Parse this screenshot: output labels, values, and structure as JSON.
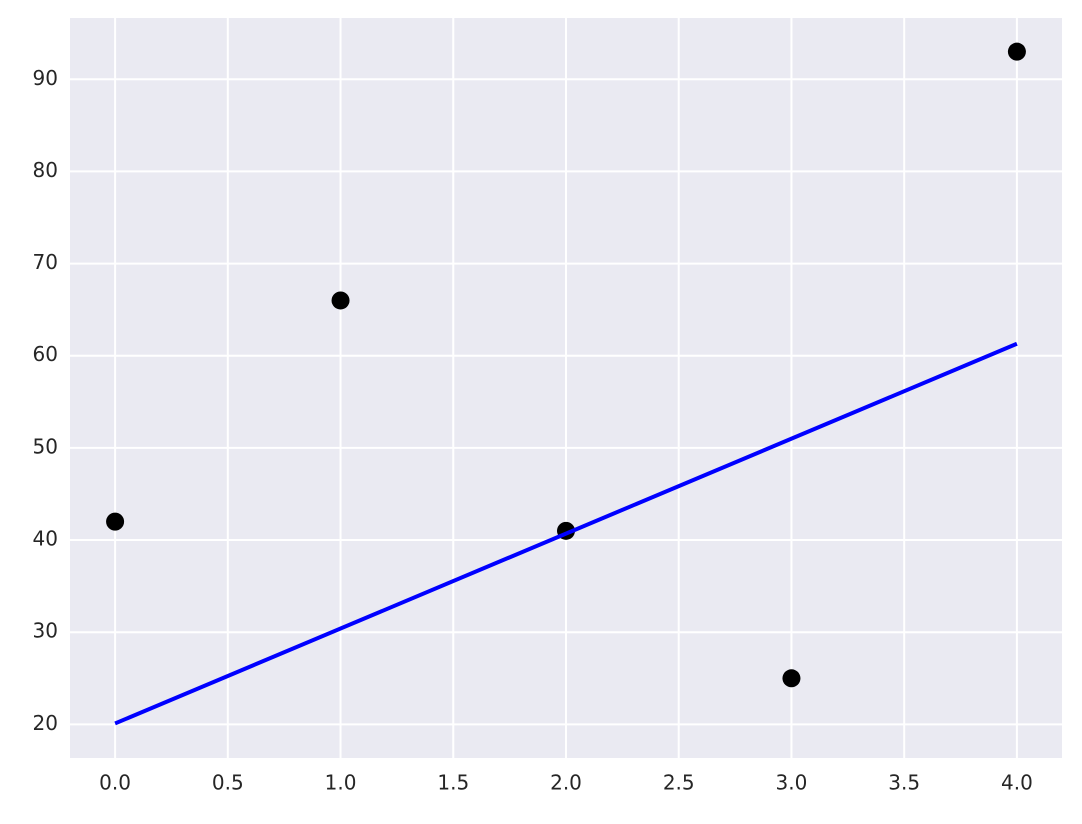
{
  "chart_data": {
    "type": "scatter",
    "series": [
      {
        "type": "scatter",
        "color": "#000000",
        "x": [
          0,
          1,
          2,
          3,
          4
        ],
        "values": [
          42,
          66,
          41,
          25,
          93
        ]
      },
      {
        "type": "line",
        "color": "#0000ff",
        "x": [
          0,
          4
        ],
        "values": [
          20.1,
          61.3
        ]
      }
    ],
    "xlim": [
      -0.2,
      4.2
    ],
    "ylim": [
      16.35,
      96.65
    ],
    "xticks": [
      {
        "value": 0,
        "label": "0.0"
      },
      0.5,
      {
        "value": 1,
        "label": "1.0"
      },
      1.5,
      {
        "value": 2,
        "label": "2.0"
      },
      2.5,
      {
        "value": 3,
        "label": "3.0"
      },
      3.5,
      {
        "value": 4,
        "label": "4.0"
      }
    ],
    "yticks": [
      20,
      30,
      40,
      50,
      60,
      70,
      80,
      90
    ],
    "grid": true,
    "background": "#eaeaf2"
  }
}
